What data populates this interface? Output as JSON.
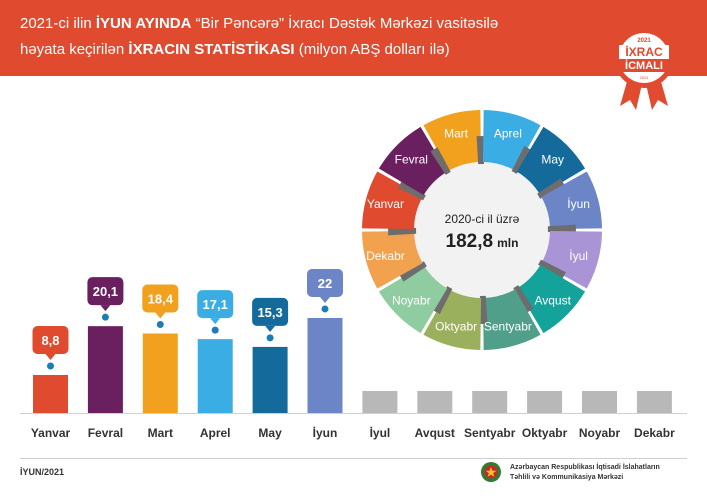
{
  "header": {
    "line1_a": "2021-ci ilin ",
    "line1_b": "İYUN AYINDA",
    "line1_c": " “Bir Pəncərə” İxracı Dəstək Mərkəzi vasitəsilə",
    "line2_a": "həyata keçirilən ",
    "line2_b": "İXRACIN STATİSTİKASI",
    "line2_c": " (milyon ABŞ dolları ilə)"
  },
  "badge": {
    "year": "2021",
    "line1": "İXRAC",
    "line2": "İCMALI",
    "bottom": "2021"
  },
  "chart_data": {
    "type": "bar",
    "categories": [
      "Yanvar",
      "Fevral",
      "Mart",
      "Aprel",
      "May",
      "İyun",
      "İyul",
      "Avqust",
      "Sentyabr",
      "Oktyabr",
      "Noyabr",
      "Dekabr"
    ],
    "values": [
      8.8,
      20.1,
      18.4,
      17.1,
      15.3,
      22,
      null,
      null,
      null,
      null,
      null,
      null
    ],
    "value_labels": [
      "8,8",
      "20,1",
      "18,4",
      "17,1",
      "15,3",
      "22",
      "",
      "",
      "",
      "",
      "",
      ""
    ],
    "colors": [
      "#e04a2f",
      "#6a1f5e",
      "#f2a11f",
      "#3aaee4",
      "#146b9b",
      "#6b85c7",
      "#b8b8b8",
      "#b8b8b8",
      "#b8b8b8",
      "#b8b8b8",
      "#b8b8b8",
      "#b8b8b8"
    ]
  },
  "donut": {
    "center_line1": "2020-ci il üzrə",
    "center_value": "182,8",
    "center_unit": "mln",
    "segments": [
      {
        "label": "Mart",
        "color": "#f2a11f"
      },
      {
        "label": "Aprel",
        "color": "#3aaee4"
      },
      {
        "label": "May",
        "color": "#146b9b"
      },
      {
        "label": "İyun",
        "color": "#6b85c7"
      },
      {
        "label": "İyul",
        "color": "#a995d6"
      },
      {
        "label": "Avqust",
        "color": "#13a39b"
      },
      {
        "label": "Sentyabr",
        "color": "#4f9f8a"
      },
      {
        "label": "Oktyabr",
        "color": "#9bb05c"
      },
      {
        "label": "Noyabr",
        "color": "#8fcc9f"
      },
      {
        "label": "Dekabr",
        "color": "#f2a14e"
      },
      {
        "label": "Yanvar",
        "color": "#e04a2f"
      },
      {
        "label": "Fevral",
        "color": "#6a1f5e"
      }
    ]
  },
  "footer": {
    "left": "İYUN/2021",
    "org_line1": "Azərbaycan Respublikası İqtisadi İslahatların",
    "org_line2": "Təhlili və Kommunikasiya Mərkəzi"
  }
}
